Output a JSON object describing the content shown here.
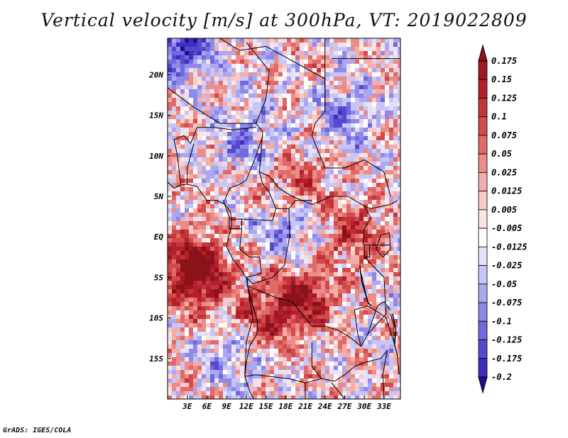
{
  "title": "Vertical velocity [m/s] at 300hPa, VT: 2019022809",
  "credit": "GrADS: IGES/COLA",
  "chart_data": {
    "type": "heatmap",
    "variable": "Vertical velocity",
    "units": "m/s",
    "level": "300hPa",
    "valid_time": "2019022809",
    "xlim": [
      0,
      35.5
    ],
    "ylim": [
      -20,
      24.5
    ],
    "x_ticks": [
      {
        "value": 3,
        "label": "3E"
      },
      {
        "value": 6,
        "label": "6E"
      },
      {
        "value": 9,
        "label": "9E"
      },
      {
        "value": 12,
        "label": "12E"
      },
      {
        "value": 15,
        "label": "15E"
      },
      {
        "value": 18,
        "label": "18E"
      },
      {
        "value": 21,
        "label": "21E"
      },
      {
        "value": 24,
        "label": "24E"
      },
      {
        "value": 27,
        "label": "27E"
      },
      {
        "value": 30,
        "label": "30E"
      },
      {
        "value": 33,
        "label": "33E"
      }
    ],
    "y_ticks": [
      {
        "value": 20,
        "label": "20N"
      },
      {
        "value": 15,
        "label": "15N"
      },
      {
        "value": 10,
        "label": "10N"
      },
      {
        "value": 5,
        "label": "5N"
      },
      {
        "value": 0,
        "label": "EQ"
      },
      {
        "value": -5,
        "label": "5S"
      },
      {
        "value": -10,
        "label": "10S"
      },
      {
        "value": -15,
        "label": "15S"
      }
    ],
    "colorbar": {
      "levels": [
        {
          "label": "0.175",
          "color": "#a01622"
        },
        {
          "label": "0.15",
          "color": "#b3202c"
        },
        {
          "label": "0.125",
          "color": "#c3343a"
        },
        {
          "label": "0.1",
          "color": "#d24b4b"
        },
        {
          "label": "0.075",
          "color": "#df6a68"
        },
        {
          "label": "0.05",
          "color": "#ea8c88"
        },
        {
          "label": "0.025",
          "color": "#f3aeaa"
        },
        {
          "label": "0.0125",
          "color": "#f8cbc8"
        },
        {
          "label": "0.005",
          "color": "#fce4e2"
        },
        {
          "label": "-0.005",
          "color": "#ffffff"
        },
        {
          "label": "-0.0125",
          "color": "#e3e2fb"
        },
        {
          "label": "-0.025",
          "color": "#c8c6f6"
        },
        {
          "label": "-0.05",
          "color": "#aca8f0"
        },
        {
          "label": "-0.075",
          "color": "#8f89e8"
        },
        {
          "label": "-0.1",
          "color": "#7169de"
        },
        {
          "label": "-0.125",
          "color": "#5749cf"
        },
        {
          "label": "-0.175",
          "color": "#3f2dbd"
        },
        {
          "label": "-0.2",
          "color": "#2c1aa8"
        }
      ],
      "over_color": "#8a1219",
      "under_color": "#1e0f90"
    },
    "features": [
      {
        "name": "updraft-belt-equatorial-west",
        "lon": 3.5,
        "lat": -3,
        "value": 0.15
      },
      {
        "name": "updraft-southwest",
        "lon": 5,
        "lat": -5.5,
        "value": 0.15
      },
      {
        "name": "updraft-south-central",
        "lon": 21,
        "lat": -7.5,
        "value": 0.175
      },
      {
        "name": "updraft-angola-coast",
        "lon": 15,
        "lat": -10,
        "value": 0.125
      },
      {
        "name": "updraft-lake-region",
        "lon": 28,
        "lat": 0.5,
        "value": 0.125
      },
      {
        "name": "updraft-band-northeast",
        "lon": 20,
        "lat": 6.5,
        "value": 0.1
      },
      {
        "name": "downdraft-northwest-corner",
        "lon": 2,
        "lat": 23.5,
        "value": -0.2
      },
      {
        "name": "downdraft-sahel",
        "lon": 12,
        "lat": 12,
        "value": -0.1
      },
      {
        "name": "downdraft-central-basin",
        "lon": 19,
        "lat": 1,
        "value": -0.1
      },
      {
        "name": "downdraft-southern-africa",
        "lon": 10,
        "lat": -15,
        "value": -0.075
      },
      {
        "name": "downdraft-northeast",
        "lon": 27,
        "lat": 15,
        "value": -0.1
      }
    ]
  }
}
